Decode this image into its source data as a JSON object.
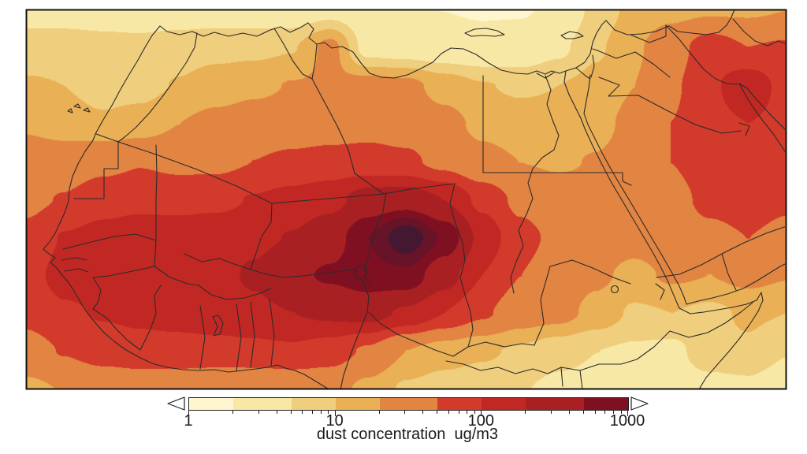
{
  "figure_type": "filled contour map of dust concentration over North Africa and the Middle East",
  "colorbar": {
    "title": "dust concentration  ug/m3",
    "tick_labels": [
      "1",
      "10",
      "100",
      "1000"
    ],
    "tick_values": [
      1,
      10,
      100,
      1000
    ],
    "minor_tick_values": [
      2,
      3,
      4,
      5,
      6,
      7,
      8,
      9,
      20,
      30,
      40,
      50,
      60,
      70,
      80,
      90,
      200,
      300,
      400,
      500,
      600,
      700,
      800,
      900
    ],
    "segments": [
      {
        "from": 1,
        "to": 2,
        "color": "#FDF6CE"
      },
      {
        "from": 2,
        "to": 5,
        "color": "#F8E8A6"
      },
      {
        "from": 5,
        "to": 10,
        "color": "#EFCE7D"
      },
      {
        "from": 10,
        "to": 20,
        "color": "#E9B055"
      },
      {
        "from": 20,
        "to": 50,
        "color": "#E28442"
      },
      {
        "from": 50,
        "to": 100,
        "color": "#D23A2B"
      },
      {
        "from": 100,
        "to": 200,
        "color": "#C22823"
      },
      {
        "from": 200,
        "to": 500,
        "color": "#A92023"
      },
      {
        "from": 500,
        "to": 1000,
        "color": "#7E1022"
      }
    ],
    "under_arrow_color": "#FCF7DC",
    "over_arrow_color": "#701022",
    "outline_color": "#222222"
  },
  "chart_data": {
    "type": "heatmap",
    "subtype": "filled-contour-map",
    "colorbar_label": "dust concentration  ug/m3",
    "units": "ug/m3",
    "scale": "logarithmic",
    "levels": [
      1,
      2,
      5,
      10,
      20,
      50,
      100,
      200,
      500,
      1000,
      2000
    ],
    "palette": {
      "under": "#FFFDEB",
      "bands": [
        "#FDF6CE",
        "#F8E8A6",
        "#EFCE7D",
        "#E9B055",
        "#E28442",
        "#D23A2B",
        "#C22823",
        "#A92023",
        "#7E1022",
        "#671328",
        "#441830"
      ]
    },
    "grid_note": "log10(dust concentration) sampled on a 21x11 grid spanning the map frame, row 0 = north",
    "grid_log10_concentration": [
      [
        0.62,
        0.6,
        0.58,
        0.5,
        0.48,
        0.5,
        0.5,
        0.45,
        0.55,
        0.42,
        0.32,
        0.3,
        0.28,
        0.28,
        0.35,
        0.8,
        1.1,
        1.2,
        1.25,
        1.25,
        1.3
      ],
      [
        0.78,
        0.8,
        0.78,
        0.8,
        0.88,
        0.92,
        0.92,
        0.98,
        1.42,
        0.55,
        0.5,
        0.42,
        0.38,
        0.42,
        0.62,
        0.95,
        1.25,
        1.55,
        1.9,
        1.7,
        1.75
      ],
      [
        1.05,
        1.0,
        0.88,
        0.9,
        1.02,
        1.12,
        1.22,
        1.32,
        1.35,
        1.45,
        1.4,
        1.18,
        1.02,
        0.95,
        1.0,
        1.1,
        1.3,
        1.65,
        1.95,
        2.2,
        1.9
      ],
      [
        1.25,
        1.15,
        1.05,
        1.12,
        1.3,
        1.42,
        1.5,
        1.52,
        1.55,
        1.6,
        1.55,
        1.42,
        1.22,
        1.15,
        1.12,
        1.2,
        1.4,
        1.7,
        1.92,
        2.0,
        1.92
      ],
      [
        1.5,
        1.5,
        1.6,
        1.68,
        1.62,
        1.62,
        1.7,
        1.76,
        1.8,
        1.8,
        1.76,
        1.6,
        1.4,
        1.3,
        1.26,
        1.32,
        1.45,
        1.7,
        1.88,
        1.95,
        1.85
      ],
      [
        1.62,
        1.72,
        1.88,
        1.92,
        1.9,
        1.92,
        2.02,
        2.1,
        2.2,
        2.45,
        2.5,
        2.3,
        1.92,
        1.62,
        1.46,
        1.4,
        1.5,
        1.6,
        1.78,
        1.85,
        1.75
      ],
      [
        1.78,
        2.02,
        2.1,
        2.16,
        2.16,
        2.2,
        2.22,
        2.32,
        2.52,
        3.0,
        3.55,
        2.95,
        2.2,
        1.8,
        1.62,
        1.46,
        1.42,
        1.5,
        1.62,
        1.7,
        1.62
      ],
      [
        1.9,
        2.1,
        2.16,
        2.2,
        2.22,
        2.2,
        2.35,
        2.62,
        2.75,
        2.9,
        2.92,
        2.45,
        2.0,
        1.7,
        1.52,
        1.36,
        1.22,
        1.35,
        1.3,
        1.4,
        1.32
      ],
      [
        1.8,
        1.96,
        2.02,
        2.06,
        2.1,
        2.16,
        2.22,
        2.3,
        2.36,
        2.42,
        2.25,
        2.0,
        1.75,
        1.5,
        1.42,
        1.2,
        0.95,
        1.0,
        0.92,
        1.05,
        1.0
      ],
      [
        1.55,
        1.72,
        1.85,
        1.9,
        1.9,
        1.9,
        1.92,
        1.95,
        1.85,
        1.65,
        1.3,
        1.15,
        1.05,
        0.95,
        0.8,
        0.7,
        0.65,
        0.6,
        0.9,
        0.95,
        0.72
      ],
      [
        1.22,
        1.32,
        1.42,
        1.46,
        1.45,
        1.4,
        1.38,
        1.42,
        1.45,
        1.2,
        0.95,
        0.85,
        0.8,
        0.72,
        0.62,
        0.6,
        0.55,
        0.52,
        0.55,
        0.6,
        0.45
      ]
    ]
  }
}
